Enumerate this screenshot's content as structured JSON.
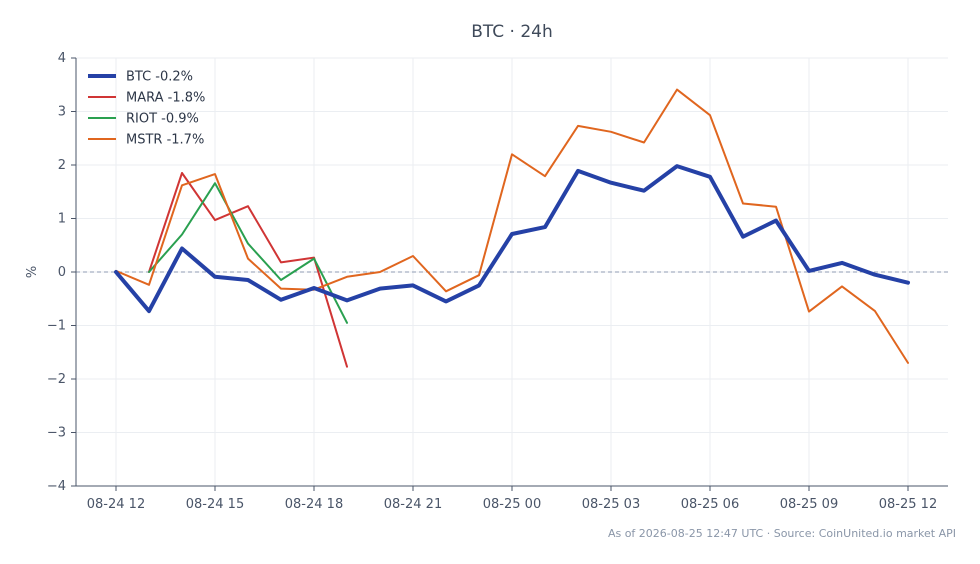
{
  "chart_data": {
    "type": "line",
    "title": "BTC · 24h",
    "xlabel": "",
    "ylabel": "%",
    "ylim": [
      -4,
      4
    ],
    "yticks": [
      4,
      3,
      2,
      1,
      0,
      -1,
      -2,
      -3,
      -4
    ],
    "ytick_labels": [
      "4",
      "3",
      "2",
      "1",
      "0",
      "−1",
      "−2",
      "−3",
      "−4"
    ],
    "x": [
      "08-24 12:00",
      "08-24 13:00",
      "08-24 14:00",
      "08-24 15:00",
      "08-24 16:00",
      "08-24 17:00",
      "08-24 18:00",
      "08-24 19:00",
      "08-24 20:00",
      "08-24 21:00",
      "08-24 22:00",
      "08-24 23:00",
      "08-25 00:00",
      "08-25 01:00",
      "08-25 02:00",
      "08-25 03:00",
      "08-25 04:00",
      "08-25 05:00",
      "08-25 06:00",
      "08-25 07:00",
      "08-25 08:00",
      "08-25 09:00",
      "08-25 10:00",
      "08-25 11:00",
      "08-25 12:00"
    ],
    "xticks": [
      "08-24 12",
      "08-24 15",
      "08-24 18",
      "08-24 21",
      "08-25 00",
      "08-25 03",
      "08-25 06",
      "08-25 09",
      "08-25 12"
    ],
    "reference_line": 0,
    "grid": true,
    "legend_position": "top-left",
    "series": [
      {
        "name": "BTC -0.2%",
        "color": "#2541a6",
        "values": [
          0.0,
          -0.73,
          0.44,
          -0.09,
          -0.15,
          -0.52,
          -0.3,
          -0.53,
          -0.31,
          -0.25,
          -0.55,
          -0.25,
          0.71,
          0.84,
          1.89,
          1.67,
          1.52,
          1.98,
          1.78,
          0.66,
          0.96,
          0.02,
          0.17,
          -0.05,
          -0.2
        ]
      },
      {
        "name": "MARA -1.8%",
        "color": "#d03535",
        "values": [
          null,
          0.0,
          1.85,
          0.97,
          1.23,
          0.18,
          0.27,
          -1.77,
          null,
          null,
          null,
          null,
          null,
          null,
          null,
          null,
          null,
          null,
          null,
          null,
          null,
          null,
          null,
          null,
          null
        ]
      },
      {
        "name": "RIOT -0.9%",
        "color": "#2aa050",
        "values": [
          null,
          0.0,
          0.7,
          1.66,
          0.53,
          -0.15,
          0.25,
          -0.95,
          null,
          null,
          null,
          null,
          null,
          null,
          null,
          null,
          null,
          null,
          null,
          null,
          null,
          null,
          null,
          null,
          null
        ]
      },
      {
        "name": "MSTR -1.7%",
        "color": "#e0661f",
        "values": [
          0.02,
          -0.24,
          1.62,
          1.83,
          0.25,
          -0.31,
          -0.33,
          -0.09,
          0.0,
          0.3,
          -0.36,
          -0.06,
          2.2,
          1.79,
          2.73,
          2.62,
          2.42,
          3.41,
          2.93,
          1.28,
          1.22,
          -0.74,
          -0.27,
          -0.73,
          -1.7
        ]
      }
    ]
  },
  "footer": {
    "text": "As of 2026-08-25 12:47 UTC · Source: CoinUnited.io market API"
  }
}
